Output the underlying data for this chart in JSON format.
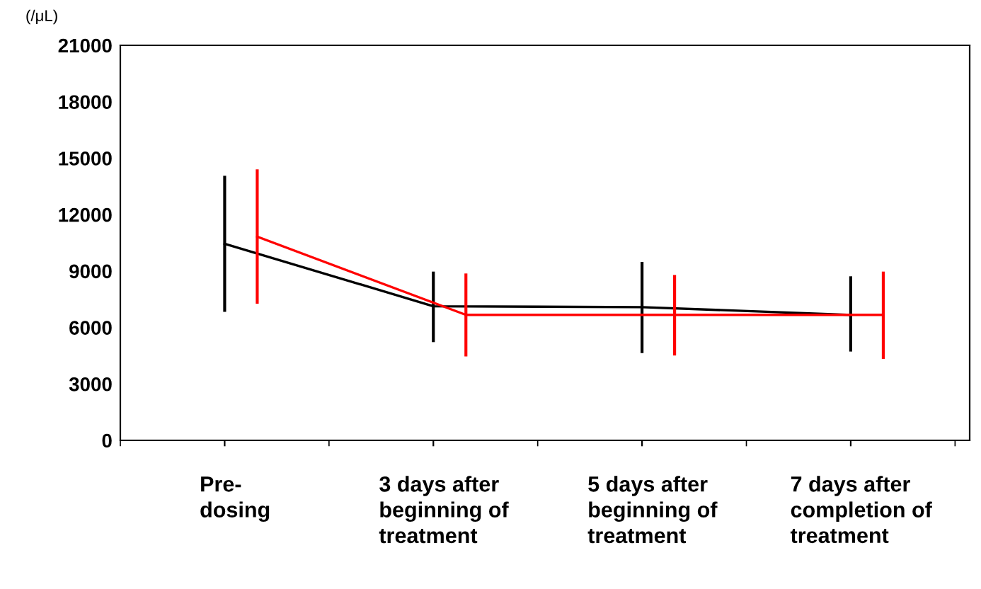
{
  "chart_data": {
    "type": "line",
    "ylabel": "(/μL)",
    "categories": [
      "Pre-\ndosing",
      "3 days after\nbeginning of\ntreatment",
      "5 days after\nbeginning of\ntreatment",
      "7 days after\ncompletion of\ntreatment"
    ],
    "series": [
      {
        "color": "#000000",
        "values": [
          10450,
          7130,
          7080,
          6670
        ],
        "errors": [
          [
            6830,
            14070
          ],
          [
            5220,
            8970
          ],
          [
            4640,
            9480
          ],
          [
            4720,
            8720
          ]
        ]
      },
      {
        "color": "#ff0000",
        "values": [
          10830,
          6670,
          6670,
          6670
        ],
        "errors": [
          [
            7260,
            14400
          ],
          [
            4460,
            8870
          ],
          [
            4510,
            8790
          ],
          [
            4330,
            8970
          ]
        ]
      }
    ],
    "ylim": [
      0,
      21000
    ],
    "yticks": [
      0,
      3000,
      6000,
      9000,
      12000,
      15000,
      18000,
      21000
    ],
    "grid": false,
    "legend": false,
    "marker": "none",
    "line_style": "solid"
  }
}
